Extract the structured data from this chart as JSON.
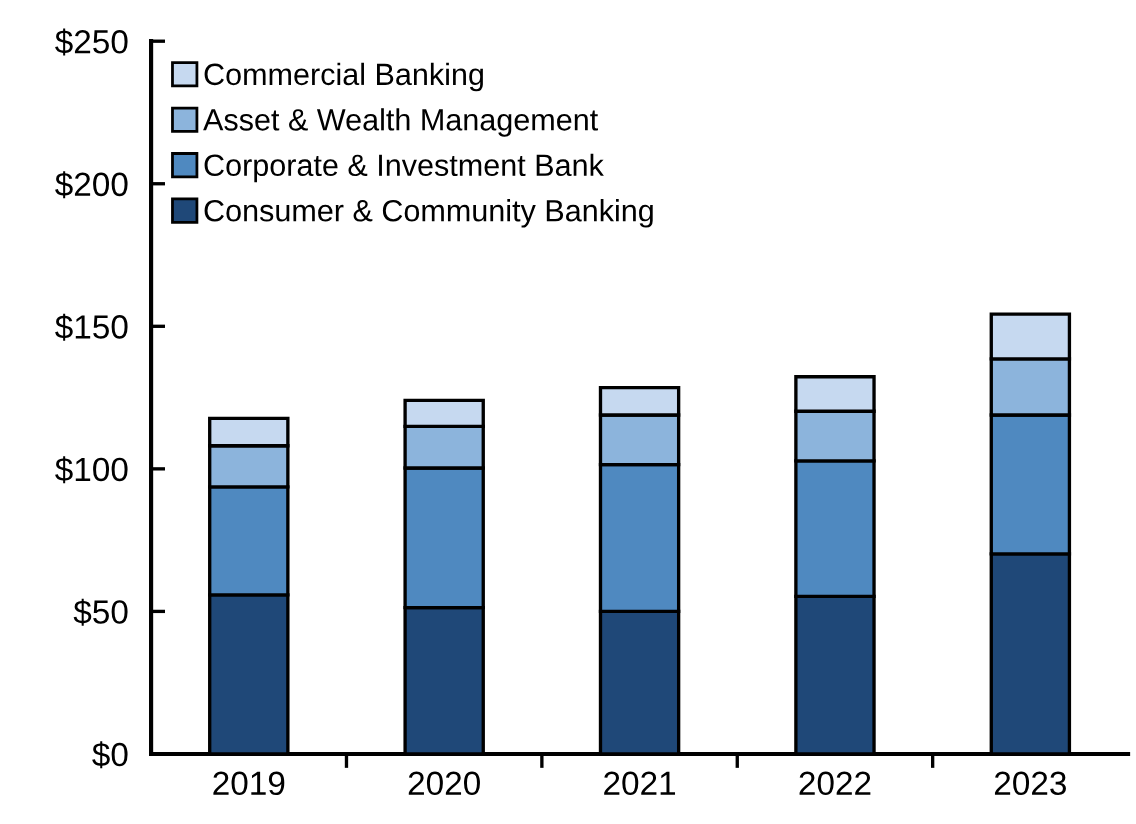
{
  "chart_data": {
    "type": "bar",
    "stacked": true,
    "categories": [
      "2019",
      "2020",
      "2021",
      "2022",
      "2023"
    ],
    "series": [
      {
        "name": "Consumer & Community Banking",
        "color": "#1f4878",
        "values": [
          55.8,
          51.3,
          50.0,
          55.3,
          70.2
        ]
      },
      {
        "name": "Corporate & Investment Bank",
        "color": "#4f89c0",
        "values": [
          37.9,
          49.0,
          51.5,
          47.5,
          48.7
        ]
      },
      {
        "name": "Asset & Wealth Management",
        "color": "#8cb4dc",
        "values": [
          14.4,
          14.6,
          17.4,
          17.4,
          19.7
        ]
      },
      {
        "name": "Commercial Banking",
        "color": "#c6d9f0",
        "values": [
          9.6,
          9.1,
          9.6,
          12.1,
          15.7
        ]
      }
    ],
    "ylim": [
      0,
      250
    ],
    "yticks": [
      {
        "value": 0,
        "label": "$0"
      },
      {
        "value": 50,
        "label": "$50"
      },
      {
        "value": 100,
        "label": "$100"
      },
      {
        "value": 150,
        "label": "$150"
      },
      {
        "value": 200,
        "label": "$200"
      },
      {
        "value": 250,
        "label": "$250"
      }
    ],
    "grid": false,
    "legend": "top left"
  }
}
